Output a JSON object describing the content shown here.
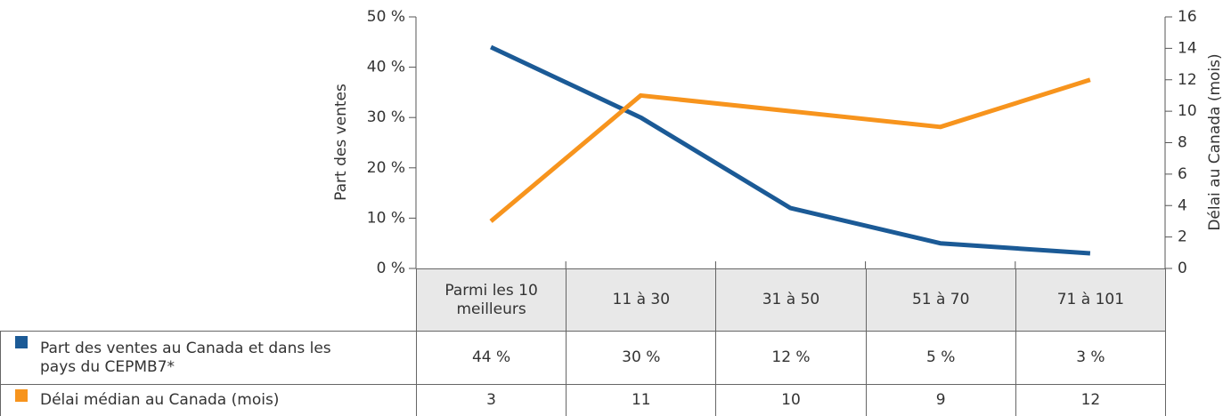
{
  "chart_data": {
    "type": "line",
    "categories": [
      "Parmi les 10 meilleurs",
      "11 à 30",
      "31 à 50",
      "51 à 70",
      "71 à 101"
    ],
    "series": [
      {
        "name": "Part des ventes au Canada et dans les pays du CEPMB7*",
        "color": "#1b5a96",
        "values": [
          44,
          30,
          12,
          5,
          3
        ],
        "value_labels": [
          "44 %",
          "30 %",
          "12 %",
          "5 %",
          "3 %"
        ]
      },
      {
        "name": "Délai médian au Canada (mois)",
        "color": "#f7941d",
        "axis": "y2",
        "values": [
          3,
          11,
          10,
          9,
          12
        ]
      }
    ],
    "ylabel": "Part des ventes",
    "y2label": "Délai au Canada (mois)",
    "ylim": [
      0,
      50
    ],
    "yticks": [
      {
        "value": 0,
        "label": "0 %"
      },
      {
        "value": 10,
        "label": "10 %"
      },
      {
        "value": 20,
        "label": "20 %"
      },
      {
        "value": 30,
        "label": "30 %"
      },
      {
        "value": 40,
        "label": "40 %"
      },
      {
        "value": 50,
        "label": "50 %"
      }
    ],
    "y2lim": [
      0,
      16
    ],
    "y2ticks": [
      0,
      2,
      4,
      6,
      8,
      10,
      12,
      14,
      16
    ],
    "grid": false
  }
}
